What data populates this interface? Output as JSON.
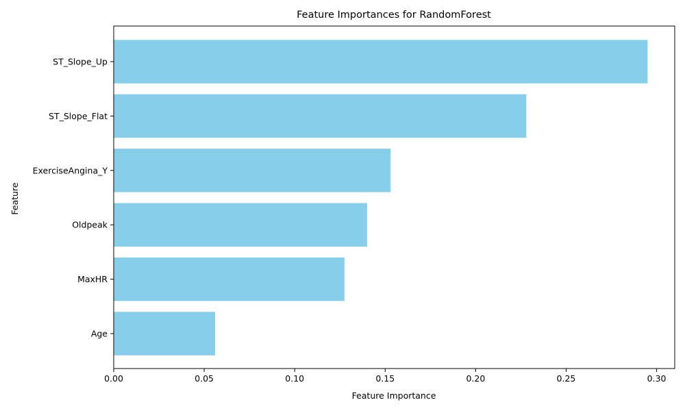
{
  "chart_data": {
    "type": "bar",
    "orientation": "horizontal",
    "title": "Feature Importances for RandomForest",
    "xlabel": "Feature Importance",
    "ylabel": "Feature",
    "categories": [
      "Age",
      "MaxHR",
      "Oldpeak",
      "ExerciseAngina_Y",
      "ST_Slope_Flat",
      "ST_Slope_Up"
    ],
    "values": [
      0.056,
      0.1275,
      0.14,
      0.153,
      0.228,
      0.295
    ],
    "xlim": [
      0,
      0.31
    ],
    "xticks": [
      0.0,
      0.05,
      0.1,
      0.15,
      0.2,
      0.25,
      0.3
    ],
    "xtick_labels": [
      "0.00",
      "0.05",
      "0.10",
      "0.15",
      "0.20",
      "0.25",
      "0.30"
    ],
    "grid": false,
    "legend": "none",
    "bar_color": "#87ceeb"
  }
}
